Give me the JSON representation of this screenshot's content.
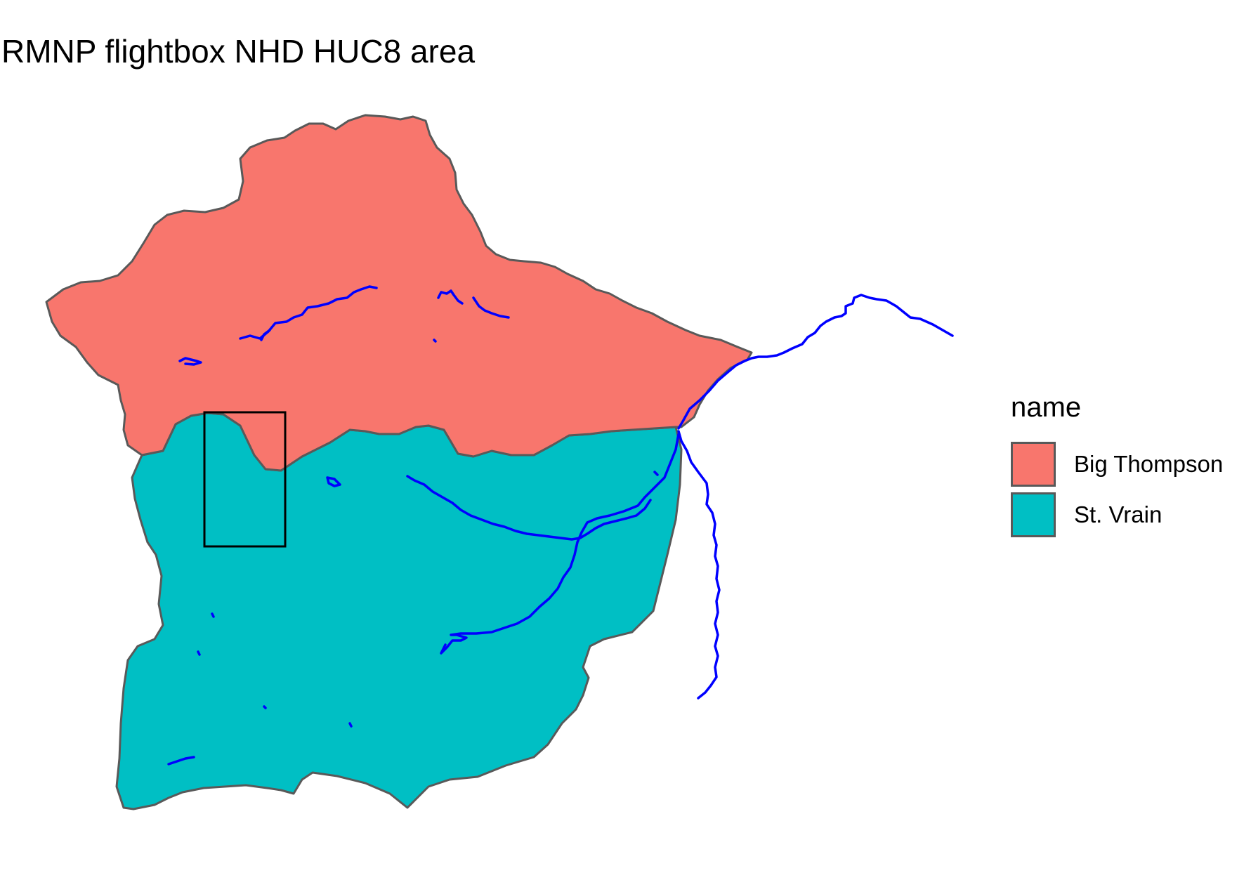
{
  "title": "RMNP flightbox NHD HUC8 area",
  "legend": {
    "title": "name",
    "items": [
      {
        "label": "Big Thompson",
        "color": "#F8766D"
      },
      {
        "label": "St. Vrain",
        "color": "#00BFC4"
      }
    ]
  },
  "colors": {
    "huc_outline": "#595959",
    "flowline": "#0000FF",
    "flightbox": "#000000"
  },
  "layers": [
    "Big Thompson HUC8 polygon",
    "St. Vrain HUC8 polygon",
    "NHD flowlines",
    "RMNP flightbox"
  ]
}
